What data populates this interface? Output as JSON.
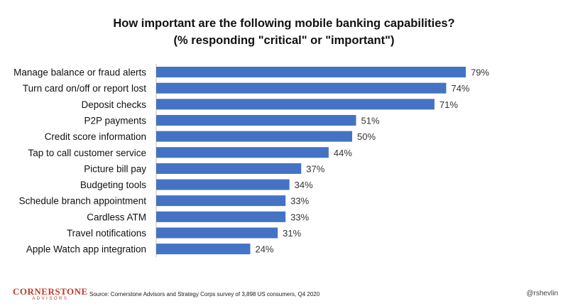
{
  "header": {
    "title_line1": "How important are the following mobile banking capabilities?",
    "title_line2": "(% responding \"critical\" or \"important\")"
  },
  "chart_data": {
    "type": "bar",
    "orientation": "horizontal",
    "categories": [
      "Manage balance or fraud alerts",
      "Turn card on/off or report lost",
      "Deposit checks",
      "P2P payments",
      "Credit score information",
      "Tap to call customer service",
      "Picture bill pay",
      "Budgeting tools",
      "Schedule branch appointment",
      "Cardless ATM",
      "Travel notifications",
      "Apple Watch app integration"
    ],
    "values": [
      79,
      74,
      71,
      51,
      50,
      44,
      37,
      34,
      33,
      33,
      31,
      24
    ],
    "value_labels": [
      "79%",
      "74%",
      "71%",
      "51%",
      "50%",
      "44%",
      "37%",
      "34%",
      "33%",
      "33%",
      "31%",
      "24%"
    ],
    "unit": "%",
    "xlim": [
      0,
      100
    ],
    "bar_color": "#4472c4",
    "grid": false,
    "legend": "none"
  },
  "footer": {
    "logo_main": "CORNERSTONE",
    "logo_sub": "ADVISORS",
    "source": "Source: Cornerstone Advisors and Strategy Corps survey of 3,898 US consumers, Q4 2020",
    "handle": "@rshevlin"
  },
  "colors": {
    "bar": "#4472c4",
    "brand": "#c0392b"
  }
}
